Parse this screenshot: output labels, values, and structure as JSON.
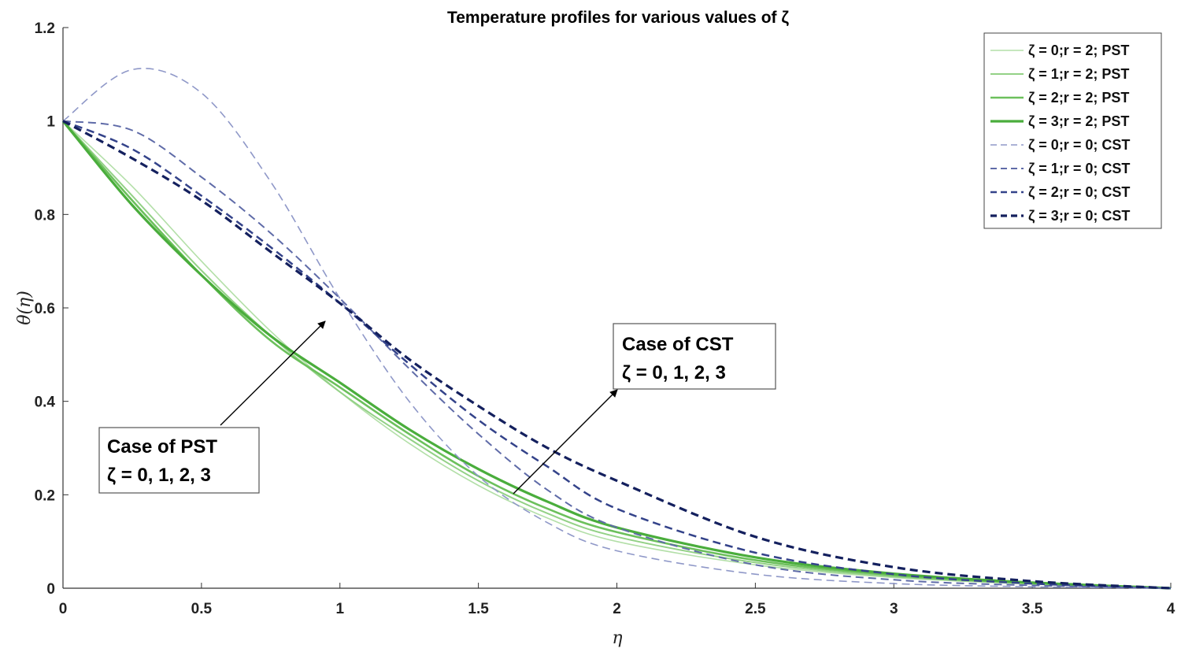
{
  "chart_data": {
    "type": "line",
    "title": "Temperature profiles for various values of ζ",
    "xlabel": "η",
    "ylabel": "θ(η)",
    "xlim": [
      0,
      4
    ],
    "ylim": [
      0,
      1.2
    ],
    "xticks": [
      0,
      0.5,
      1,
      1.5,
      2,
      2.5,
      3,
      3.5,
      4
    ],
    "xtick_labels": [
      "0",
      "0.5",
      "1",
      "1.5",
      "2",
      "2.5",
      "3",
      "3.5",
      "4"
    ],
    "yticks": [
      0,
      0.2,
      0.4,
      0.6,
      0.8,
      1,
      1.2
    ],
    "ytick_labels": [
      "0",
      "0.2",
      "0.4",
      "0.6",
      "0.8",
      "1",
      "1.2"
    ],
    "grid": false,
    "legend_position": "top-right",
    "x": [
      0,
      0.25,
      0.5,
      0.75,
      1,
      1.25,
      1.5,
      1.75,
      2,
      2.5,
      3,
      3.5,
      4
    ],
    "series": [
      {
        "name": "ζ = 0;r = 2; PST",
        "style": "solid",
        "color": "#b3dfa8",
        "width": 1.6,
        "values": [
          1,
          0.86,
          0.7,
          0.55,
          0.42,
          0.31,
          0.22,
          0.15,
          0.1,
          0.05,
          0.023,
          0.009,
          0
        ]
      },
      {
        "name": "ζ = 1;r = 2; PST",
        "style": "solid",
        "color": "#93d186",
        "width": 2,
        "values": [
          1,
          0.84,
          0.68,
          0.54,
          0.42,
          0.32,
          0.23,
          0.16,
          0.11,
          0.055,
          0.025,
          0.01,
          0
        ]
      },
      {
        "name": "ζ = 2;r = 2; PST",
        "style": "solid",
        "color": "#6cc05c",
        "width": 2.6,
        "values": [
          1,
          0.83,
          0.67,
          0.53,
          0.43,
          0.33,
          0.24,
          0.17,
          0.12,
          0.06,
          0.028,
          0.011,
          0
        ]
      },
      {
        "name": "ζ = 3;r = 2; PST",
        "style": "solid",
        "color": "#4aad3c",
        "width": 3.2,
        "values": [
          1,
          0.82,
          0.67,
          0.54,
          0.44,
          0.34,
          0.255,
          0.185,
          0.13,
          0.066,
          0.031,
          0.012,
          0
        ]
      },
      {
        "name": "ζ = 0;r = 0; CST",
        "style": "dashed",
        "color": "#8f98c8",
        "width": 1.6,
        "values": [
          1,
          1.11,
          1.06,
          0.87,
          0.62,
          0.4,
          0.24,
          0.14,
          0.08,
          0.03,
          0.01,
          0.003,
          0
        ]
      },
      {
        "name": "ζ = 1;r = 0; CST",
        "style": "dashed",
        "color": "#5f6ba8",
        "width": 2,
        "values": [
          1,
          0.98,
          0.88,
          0.76,
          0.62,
          0.47,
          0.33,
          0.21,
          0.13,
          0.05,
          0.018,
          0.006,
          0
        ]
      },
      {
        "name": "ζ = 2;r = 0; CST",
        "style": "dashed",
        "color": "#34438a",
        "width": 2.5,
        "values": [
          1,
          0.94,
          0.84,
          0.73,
          0.61,
          0.48,
          0.36,
          0.26,
          0.17,
          0.076,
          0.03,
          0.01,
          0
        ]
      },
      {
        "name": "ζ = 3;r = 0; CST",
        "style": "dashed",
        "color": "#14205e",
        "width": 3.2,
        "values": [
          1,
          0.92,
          0.83,
          0.72,
          0.61,
          0.49,
          0.39,
          0.3,
          0.23,
          0.11,
          0.045,
          0.015,
          0
        ]
      }
    ],
    "annotations": [
      {
        "line1": "Case of PST",
        "line2": "ζ = 0, 1, 2, 3"
      },
      {
        "line1": "Case of CST",
        "line2": "ζ = 0, 1, 2, 3"
      }
    ]
  }
}
